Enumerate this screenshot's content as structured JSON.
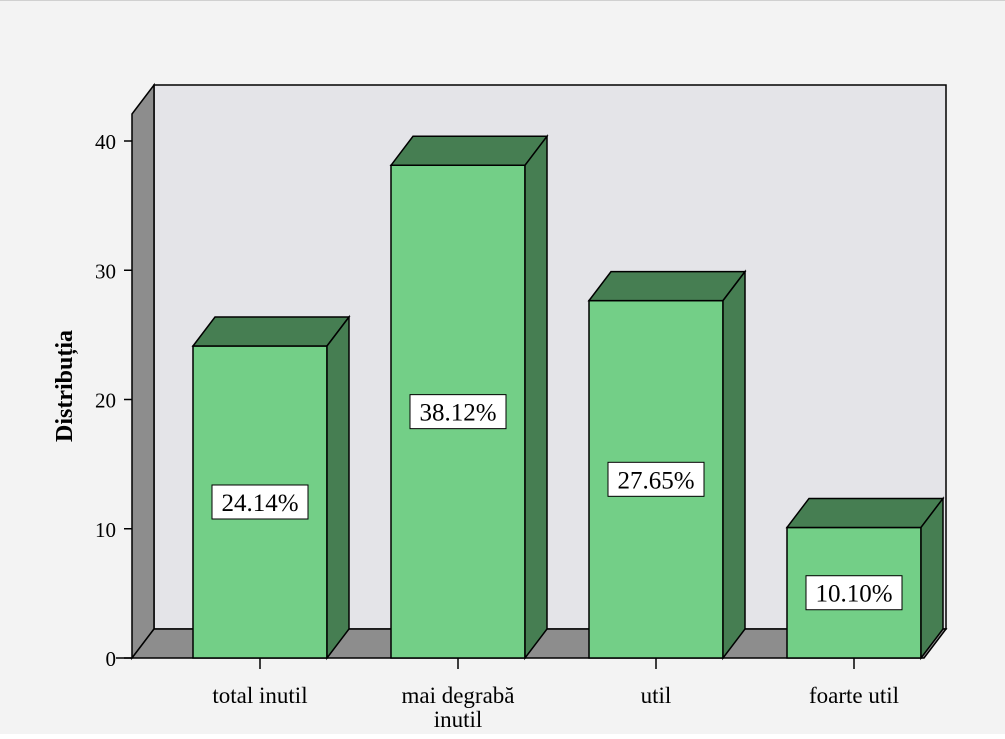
{
  "chart_data": {
    "type": "bar",
    "title": "",
    "xlabel": "",
    "ylabel": "Distribuția",
    "categories": [
      [
        "total inutil"
      ],
      [
        "mai degrabă",
        "inutil"
      ],
      [
        "util"
      ],
      [
        "foarte util"
      ]
    ],
    "values": [
      24.14,
      38.12,
      27.65,
      10.1
    ],
    "data_labels": [
      "24.14%",
      "38.12%",
      "27.65%",
      "10.10%"
    ],
    "ylim": [
      0,
      40
    ],
    "yticks": [
      "0",
      "10",
      "20",
      "30",
      "40"
    ],
    "grid": false,
    "legend": "none",
    "style": "3d",
    "colors": {
      "bar_front": "#73cf87",
      "bar_top_side": "#467e52",
      "back_wall": "#e4e4e8",
      "floor_side_wall": "#8d8d8d",
      "outline": "#000000",
      "page_background": "#f3f3f3"
    }
  }
}
